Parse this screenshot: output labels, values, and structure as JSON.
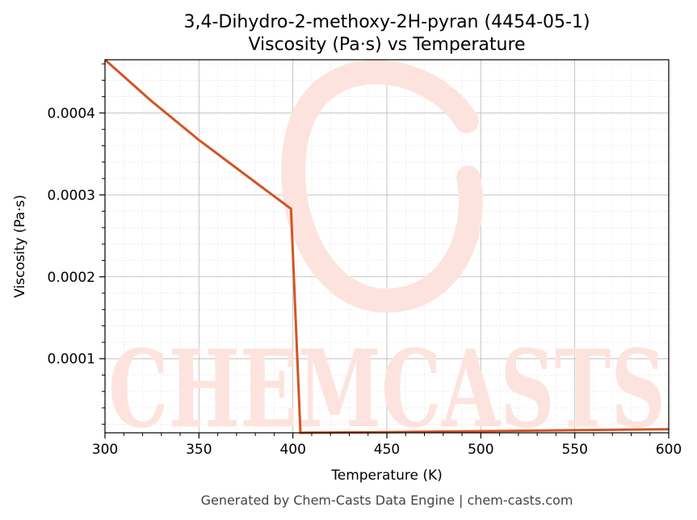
{
  "chart_data": {
    "type": "line",
    "title": "3,4-Dihydro-2-methoxy-2H-pyran (4454-05-1)",
    "subtitle": "Viscosity (Pa·s) vs Temperature",
    "xlabel": "Temperature (K)",
    "ylabel": "Viscosity (Pa·s)",
    "xlim": [
      300,
      600
    ],
    "ylim": [
      9.5e-06,
      0.000465
    ],
    "x_ticks": [
      300,
      350,
      400,
      450,
      500,
      550,
      600
    ],
    "x_tick_labels": [
      "300",
      "350",
      "400",
      "450",
      "500",
      "550",
      "600"
    ],
    "y_ticks": [
      0.0001,
      0.0002,
      0.0003,
      0.0004
    ],
    "y_tick_labels": [
      "0.0001",
      "0.0002",
      "0.0003",
      "0.0004"
    ],
    "grid": true,
    "series": [
      {
        "color": "#d35426",
        "x": [
          300,
          325,
          350,
          375,
          399,
          404,
          450,
          500,
          550,
          600
        ],
        "y": [
          0.000465,
          0.000414,
          0.000367,
          0.000324,
          0.000283,
          9.5e-06,
          1.03e-05,
          1.15e-05,
          1.27e-05,
          1.38e-05
        ]
      }
    ]
  },
  "watermark": {
    "text": "CHEMCASTS",
    "color": "#fde3de"
  },
  "footer": "Generated by Chem-Casts Data Engine | chem-casts.com"
}
